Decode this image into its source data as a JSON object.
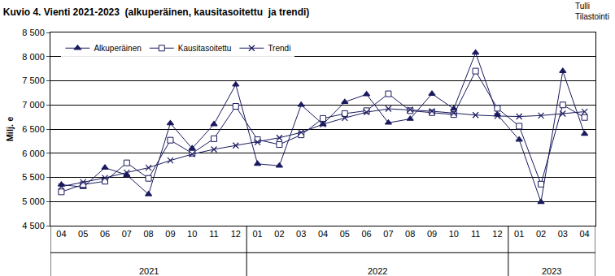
{
  "chart_data": {
    "type": "line",
    "title": "Kuvio 4. Vienti 2021-2023  (alkuperäinen, kausitasoitettu  ja trendi)",
    "source": [
      "Tulli",
      "Tilastointi"
    ],
    "y_label": "Milj. e",
    "categories": [
      "04",
      "05",
      "06",
      "07",
      "08",
      "09",
      "10",
      "11",
      "12",
      "01",
      "02",
      "03",
      "04",
      "05",
      "06",
      "07",
      "08",
      "09",
      "10",
      "11",
      "12",
      "01",
      "02",
      "03",
      "04"
    ],
    "groups": [
      {
        "label": "2021",
        "count": 9
      },
      {
        "label": "2022",
        "count": 12
      },
      {
        "label": "2023",
        "count": 4
      }
    ],
    "series": [
      {
        "name": "Alkuperäinen",
        "color": "#1a1a5e",
        "marker": "triangle",
        "line_style": "solid",
        "values": [
          5350,
          5300,
          5700,
          5550,
          5150,
          6620,
          6100,
          6600,
          7420,
          5780,
          5740,
          7000,
          6600,
          7060,
          7220,
          6630,
          6710,
          7230,
          6920,
          8080,
          6800,
          6280,
          4990,
          7700,
          6400
        ]
      },
      {
        "name": "Kausitasoitettu",
        "color": "#1a1a5e",
        "marker": "square-open",
        "line_style": "solid",
        "values": [
          5200,
          5350,
          5420,
          5800,
          5480,
          6270,
          6000,
          6300,
          6970,
          6280,
          6180,
          6380,
          6720,
          6820,
          6880,
          7230,
          6880,
          6840,
          6800,
          7700,
          6930,
          6560,
          5360,
          7000,
          6740
        ]
      },
      {
        "name": "Trendi",
        "color": "#1a1a5e",
        "marker": "x",
        "line_style": "solid",
        "values": [
          5310,
          5400,
          5490,
          5600,
          5700,
          5850,
          5980,
          6080,
          6160,
          6230,
          6320,
          6430,
          6600,
          6730,
          6850,
          6920,
          6900,
          6870,
          6830,
          6790,
          6770,
          6760,
          6780,
          6820,
          6860
        ]
      }
    ],
    "ylim": [
      4500,
      8500
    ],
    "yticks": [
      {
        "value": 4500,
        "label": "4 500"
      },
      {
        "value": 5000,
        "label": "5 000"
      },
      {
        "value": 5500,
        "label": "5 500"
      },
      {
        "value": 6000,
        "label": "6 000"
      },
      {
        "value": 6500,
        "label": "6 500"
      },
      {
        "value": 7000,
        "label": "7 000"
      },
      {
        "value": 7500,
        "label": "7 500"
      },
      {
        "value": 8000,
        "label": "8 000"
      },
      {
        "value": 8500,
        "label": "8 500"
      }
    ],
    "grid": true,
    "legend": "upper left"
  }
}
